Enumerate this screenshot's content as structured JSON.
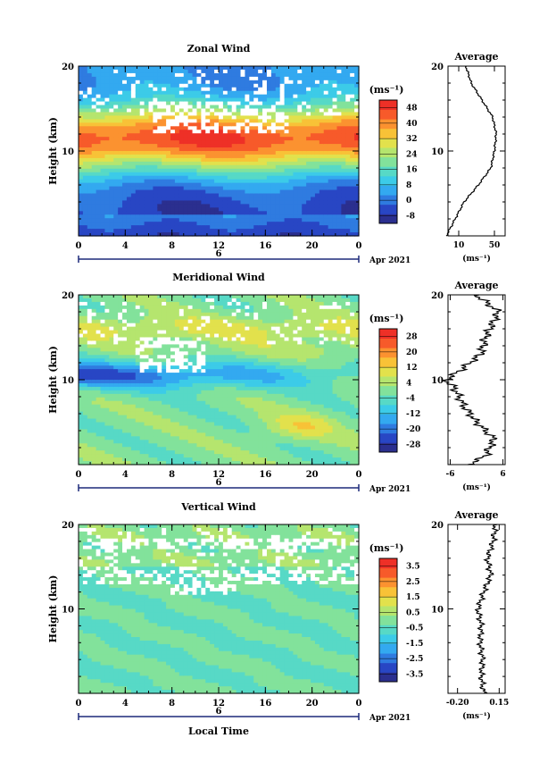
{
  "panels": [
    {
      "id": "zonal",
      "title": "Zonal Wind",
      "ylabel": "Height (km)",
      "unit": "(ms⁻¹)",
      "avg_title": "Average",
      "avg_xlabel": "(ms⁻¹)",
      "date_label": "Apr 2021",
      "day_label": "6"
    },
    {
      "id": "meridional",
      "title": "Meridional Wind",
      "ylabel": "Height (km)",
      "unit": "(ms⁻¹)",
      "avg_title": "Average",
      "avg_xlabel": "(ms⁻¹)",
      "date_label": "Apr 2021",
      "day_label": "6"
    },
    {
      "id": "vertical",
      "title": "Vertical Wind",
      "ylabel": "Height (km)",
      "unit": "(ms⁻¹)",
      "avg_title": "Average",
      "avg_xlabel": "(ms⁻¹)",
      "date_label": "Apr 2021",
      "day_label": "6",
      "xlabel": "Local Time"
    }
  ],
  "chart_data": [
    {
      "type": "heatmap",
      "title": "Zonal Wind",
      "ylabel": "Height (km)",
      "xlabel": "",
      "x_ticks": [
        "0",
        "4",
        "8",
        "12",
        "16",
        "20",
        "0"
      ],
      "xlim": [
        0,
        24
      ],
      "y_ticks": [
        "10",
        "20"
      ],
      "ylim": [
        0,
        20
      ],
      "colorbar_unit": "(ms⁻¹)",
      "colorbar_ticks": [
        "48",
        "40",
        "32",
        "24",
        "16",
        "8",
        "0",
        "-8"
      ],
      "colorbar_range": [
        -12,
        52
      ],
      "profile_km": [
        0,
        2,
        4,
        6,
        8,
        10,
        12,
        14,
        16,
        18,
        20
      ],
      "profile_ms": [
        -4,
        6,
        16,
        32,
        46,
        50,
        52,
        48,
        36,
        24,
        18
      ]
    },
    {
      "type": "heatmap",
      "title": "Meridional Wind",
      "ylabel": "Height (km)",
      "xlabel": "",
      "x_ticks": [
        "0",
        "4",
        "8",
        "12",
        "16",
        "20",
        "0"
      ],
      "xlim": [
        0,
        24
      ],
      "y_ticks": [
        "10",
        "20"
      ],
      "ylim": [
        0,
        20
      ],
      "colorbar_unit": "(ms⁻¹)",
      "colorbar_ticks": [
        "28",
        "20",
        "12",
        "4",
        "-4",
        "-12",
        "-20",
        "-28"
      ],
      "colorbar_range": [
        -32,
        32
      ],
      "profile_km": [
        0,
        1,
        3,
        5,
        7,
        9,
        10,
        11,
        13,
        15,
        17,
        18,
        20
      ],
      "profile_ms": [
        -2,
        2,
        4,
        0,
        -3,
        -5,
        -7,
        -4,
        1,
        2,
        4,
        5,
        0
      ]
    },
    {
      "type": "heatmap",
      "title": "Vertical Wind",
      "ylabel": "Height (km)",
      "xlabel": "Local Time",
      "x_ticks": [
        "0",
        "4",
        "8",
        "12",
        "16",
        "20",
        "0"
      ],
      "xlim": [
        0,
        24
      ],
      "y_ticks": [
        "10",
        "20"
      ],
      "ylim": [
        0,
        20
      ],
      "colorbar_unit": "(ms⁻¹)",
      "colorbar_ticks": [
        "3.5",
        "2.5",
        "1.5",
        "0.5",
        "-0.5",
        "-1.5",
        "-2.5",
        "-3.5"
      ],
      "colorbar_range": [
        -4,
        4
      ],
      "profile_km": [
        0,
        2,
        4,
        6,
        8,
        10,
        12,
        14,
        16,
        18,
        20
      ],
      "profile_ms": [
        0.02,
        0.0,
        0.01,
        -0.01,
        0.0,
        -0.03,
        0.02,
        0.08,
        0.05,
        0.1,
        0.12
      ],
      "profile_xticks": [
        "-0.20",
        "0.15"
      ]
    }
  ],
  "colors": {
    "jet": [
      "#2b2f8f",
      "#2846c4",
      "#2f7be0",
      "#33a9f0",
      "#3ccbe8",
      "#57d9c6",
      "#82e29b",
      "#b5e56e",
      "#e2e14c",
      "#f8c237",
      "#fb9230",
      "#f75a2a",
      "#ee3027"
    ]
  }
}
